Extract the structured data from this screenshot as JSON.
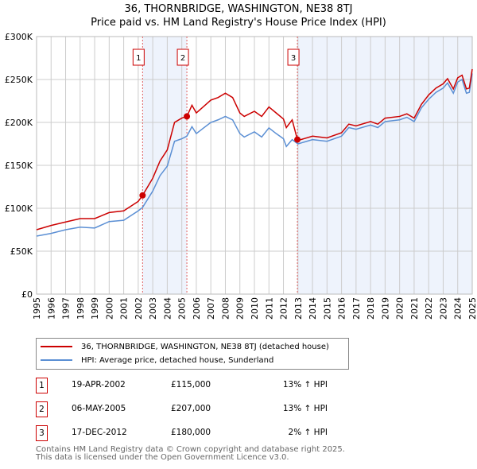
{
  "chart_data": {
    "type": "line",
    "title": "36, THORNBRIDGE, WASHINGTON, NE38 8TJ",
    "subtitle": "Price paid vs. HM Land Registry's House Price Index (HPI)",
    "xlim": [
      1995,
      2025
    ],
    "ylim": [
      0,
      300000
    ],
    "x_ticks": [
      "1995",
      "1996",
      "1997",
      "1998",
      "1999",
      "2000",
      "2001",
      "2002",
      "2003",
      "2004",
      "2005",
      "2006",
      "2007",
      "2008",
      "2009",
      "2010",
      "2011",
      "2012",
      "2013",
      "2014",
      "2015",
      "2016",
      "2017",
      "2018",
      "2019",
      "2020",
      "2021",
      "2022",
      "2023",
      "2024",
      "2025"
    ],
    "y_ticks": [
      {
        "v": 0,
        "label": "£0"
      },
      {
        "v": 50000,
        "label": "£50K"
      },
      {
        "v": 100000,
        "label": "£100K"
      },
      {
        "v": 150000,
        "label": "£150K"
      },
      {
        "v": 200000,
        "label": "£200K"
      },
      {
        "v": 250000,
        "label": "£250K"
      },
      {
        "v": 300000,
        "label": "£300K"
      }
    ],
    "grid": true,
    "series": [
      {
        "name": "36, THORNBRIDGE, WASHINGTON, NE38 8TJ (detached house)",
        "color": "#cc0000",
        "points": [
          [
            1995,
            75000
          ],
          [
            1996,
            80000
          ],
          [
            1997,
            84000
          ],
          [
            1998,
            88000
          ],
          [
            1999,
            88000
          ],
          [
            2000,
            95000
          ],
          [
            2001,
            97000
          ],
          [
            2002,
            108000
          ],
          [
            2002.3,
            115000
          ],
          [
            2003,
            135000
          ],
          [
            2003.5,
            155000
          ],
          [
            2004,
            168000
          ],
          [
            2004.5,
            200000
          ],
          [
            2005,
            205000
          ],
          [
            2005.35,
            207000
          ],
          [
            2005.7,
            220000
          ],
          [
            2006,
            211000
          ],
          [
            2007,
            226000
          ],
          [
            2007.5,
            229000
          ],
          [
            2008,
            234000
          ],
          [
            2008.5,
            229000
          ],
          [
            2009,
            211000
          ],
          [
            2009.3,
            207000
          ],
          [
            2010,
            213000
          ],
          [
            2010.5,
            207000
          ],
          [
            2011,
            218000
          ],
          [
            2011.5,
            211000
          ],
          [
            2012,
            204000
          ],
          [
            2012.2,
            194000
          ],
          [
            2012.6,
            203000
          ],
          [
            2012.96,
            180000
          ],
          [
            2013,
            179000
          ],
          [
            2014,
            184000
          ],
          [
            2015,
            182000
          ],
          [
            2016,
            188000
          ],
          [
            2016.5,
            198000
          ],
          [
            2017,
            196000
          ],
          [
            2018,
            201000
          ],
          [
            2018.5,
            198000
          ],
          [
            2019,
            205000
          ],
          [
            2020,
            207000
          ],
          [
            2020.5,
            210000
          ],
          [
            2021,
            205000
          ],
          [
            2021.5,
            221000
          ],
          [
            2022,
            232000
          ],
          [
            2022.5,
            240000
          ],
          [
            2023,
            245000
          ],
          [
            2023.3,
            251000
          ],
          [
            2023.7,
            239000
          ],
          [
            2024,
            252000
          ],
          [
            2024.3,
            255000
          ],
          [
            2024.6,
            239000
          ],
          [
            2024.8,
            240000
          ],
          [
            2025,
            262000
          ]
        ]
      },
      {
        "name": "HPI: Average price, detached house, Sunderland",
        "color": "#5b8fd4",
        "points": [
          [
            1995,
            67600
          ],
          [
            1996,
            70700
          ],
          [
            1997,
            75000
          ],
          [
            1998,
            78000
          ],
          [
            1999,
            77000
          ],
          [
            2000,
            84500
          ],
          [
            2001,
            86000
          ],
          [
            2002,
            97000
          ],
          [
            2002.3,
            101000
          ],
          [
            2003,
            120000
          ],
          [
            2003.5,
            138000
          ],
          [
            2004,
            149000
          ],
          [
            2004.5,
            178000
          ],
          [
            2005,
            181000
          ],
          [
            2005.35,
            184000
          ],
          [
            2005.7,
            195000
          ],
          [
            2006,
            187000
          ],
          [
            2007,
            200000
          ],
          [
            2007.5,
            203000
          ],
          [
            2008,
            207000
          ],
          [
            2008.5,
            203000
          ],
          [
            2009,
            187000
          ],
          [
            2009.3,
            183000
          ],
          [
            2010,
            189000
          ],
          [
            2010.5,
            183000
          ],
          [
            2011,
            193600
          ],
          [
            2011.5,
            187000
          ],
          [
            2012,
            181000
          ],
          [
            2012.2,
            172000
          ],
          [
            2012.6,
            180000
          ],
          [
            2013,
            175000
          ],
          [
            2014,
            180000
          ],
          [
            2015,
            178000
          ],
          [
            2016,
            184000
          ],
          [
            2016.5,
            194000
          ],
          [
            2017,
            192000
          ],
          [
            2018,
            197000
          ],
          [
            2018.5,
            194000
          ],
          [
            2019,
            201000
          ],
          [
            2020,
            203000
          ],
          [
            2020.5,
            206000
          ],
          [
            2021,
            201000
          ],
          [
            2021.5,
            217000
          ],
          [
            2022,
            227000
          ],
          [
            2022.5,
            235000
          ],
          [
            2023,
            240000
          ],
          [
            2023.3,
            246000
          ],
          [
            2023.7,
            234000
          ],
          [
            2024,
            247000
          ],
          [
            2024.3,
            250000
          ],
          [
            2024.6,
            234000
          ],
          [
            2024.8,
            235000
          ],
          [
            2025,
            257000
          ]
        ]
      }
    ],
    "sales": [
      {
        "id": "1",
        "x": 2002.3,
        "y": 115000
      },
      {
        "id": "2",
        "x": 2005.35,
        "y": 207000
      },
      {
        "id": "3",
        "x": 2012.96,
        "y": 180000
      }
    ],
    "shaded_ranges": [
      [
        2002.3,
        2005.35
      ],
      [
        2012.96,
        2025
      ]
    ]
  },
  "legend": {
    "red": "36, THORNBRIDGE, WASHINGTON, NE38 8TJ (detached house)",
    "blue": "HPI: Average price, detached house, Sunderland"
  },
  "transactions": [
    {
      "num": "1",
      "date": "19-APR-2002",
      "price": "£115,000",
      "hpi": "13% ↑ HPI"
    },
    {
      "num": "2",
      "date": "06-MAY-2005",
      "price": "£207,000",
      "hpi": "13% ↑ HPI"
    },
    {
      "num": "3",
      "date": "17-DEC-2012",
      "price": "£180,000",
      "hpi": " 2% ↑ HPI"
    }
  ],
  "footer": [
    "Contains HM Land Registry data © Crown copyright and database right 2025.",
    "This data is licensed under the Open Government Licence v3.0."
  ]
}
